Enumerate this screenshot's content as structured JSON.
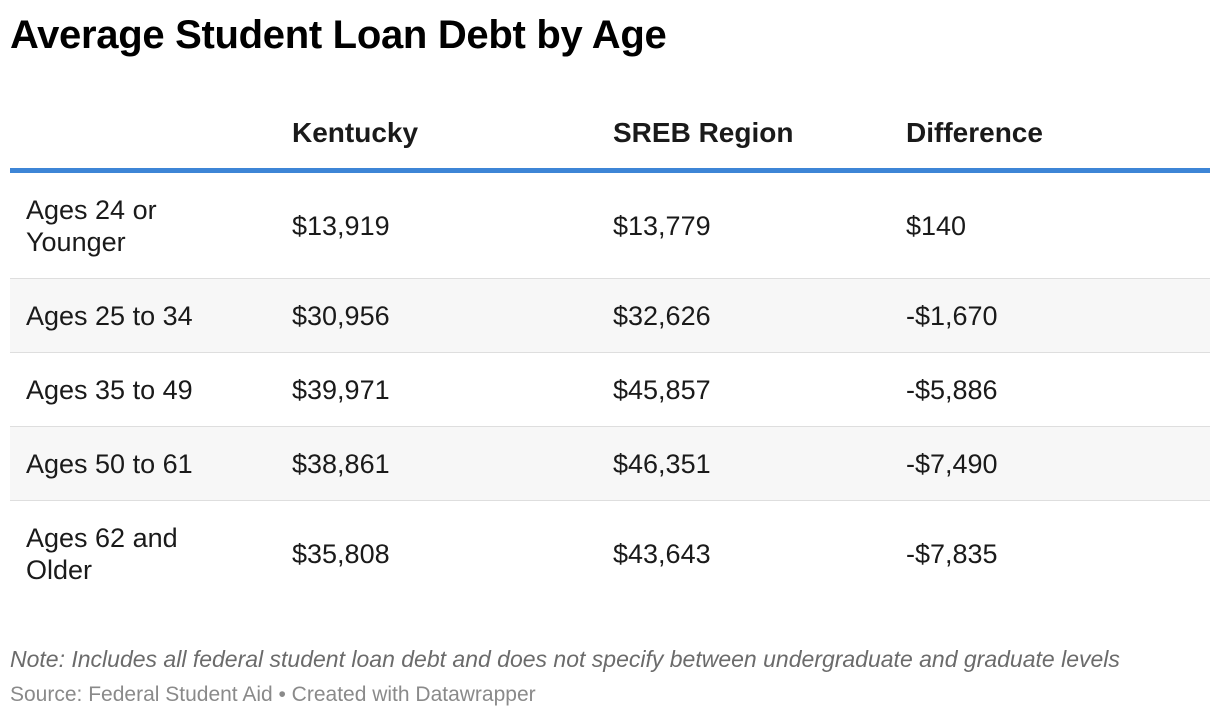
{
  "chart_data": {
    "type": "table",
    "title": "Average Student Loan Debt by Age",
    "columns": [
      "",
      "Kentucky",
      "SREB Region",
      "Difference"
    ],
    "rows": [
      {
        "label": "Ages 24 or Younger",
        "kentucky": "$13,919",
        "sreb": "$13,779",
        "difference": "$140"
      },
      {
        "label": "Ages 25 to 34",
        "kentucky": "$30,956",
        "sreb": "$32,626",
        "difference": "-$1,670"
      },
      {
        "label": "Ages 35 to 49",
        "kentucky": "$39,971",
        "sreb": "$45,857",
        "difference": "-$5,886"
      },
      {
        "label": "Ages 50 to 61",
        "kentucky": "$38,861",
        "sreb": "$46,351",
        "difference": "-$7,490"
      },
      {
        "label": "Ages 62 and Older",
        "kentucky": "$35,808",
        "sreb": "$43,643",
        "difference": "-$7,835"
      }
    ],
    "values": {
      "kentucky": [
        13919,
        30956,
        39971,
        38861,
        35808
      ],
      "sreb": [
        13779,
        32626,
        45857,
        46351,
        43643
      ],
      "difference": [
        140,
        -1670,
        -5886,
        -7490,
        -7835
      ]
    },
    "note": "Note: Includes all federal student loan debt and does not specify between undergraduate and graduate levels",
    "source": "Source: Federal Student Aid • Created with Datawrapper",
    "colors": {
      "header_rule": "#3d85d6",
      "alt_row": "#f7f7f7"
    }
  }
}
